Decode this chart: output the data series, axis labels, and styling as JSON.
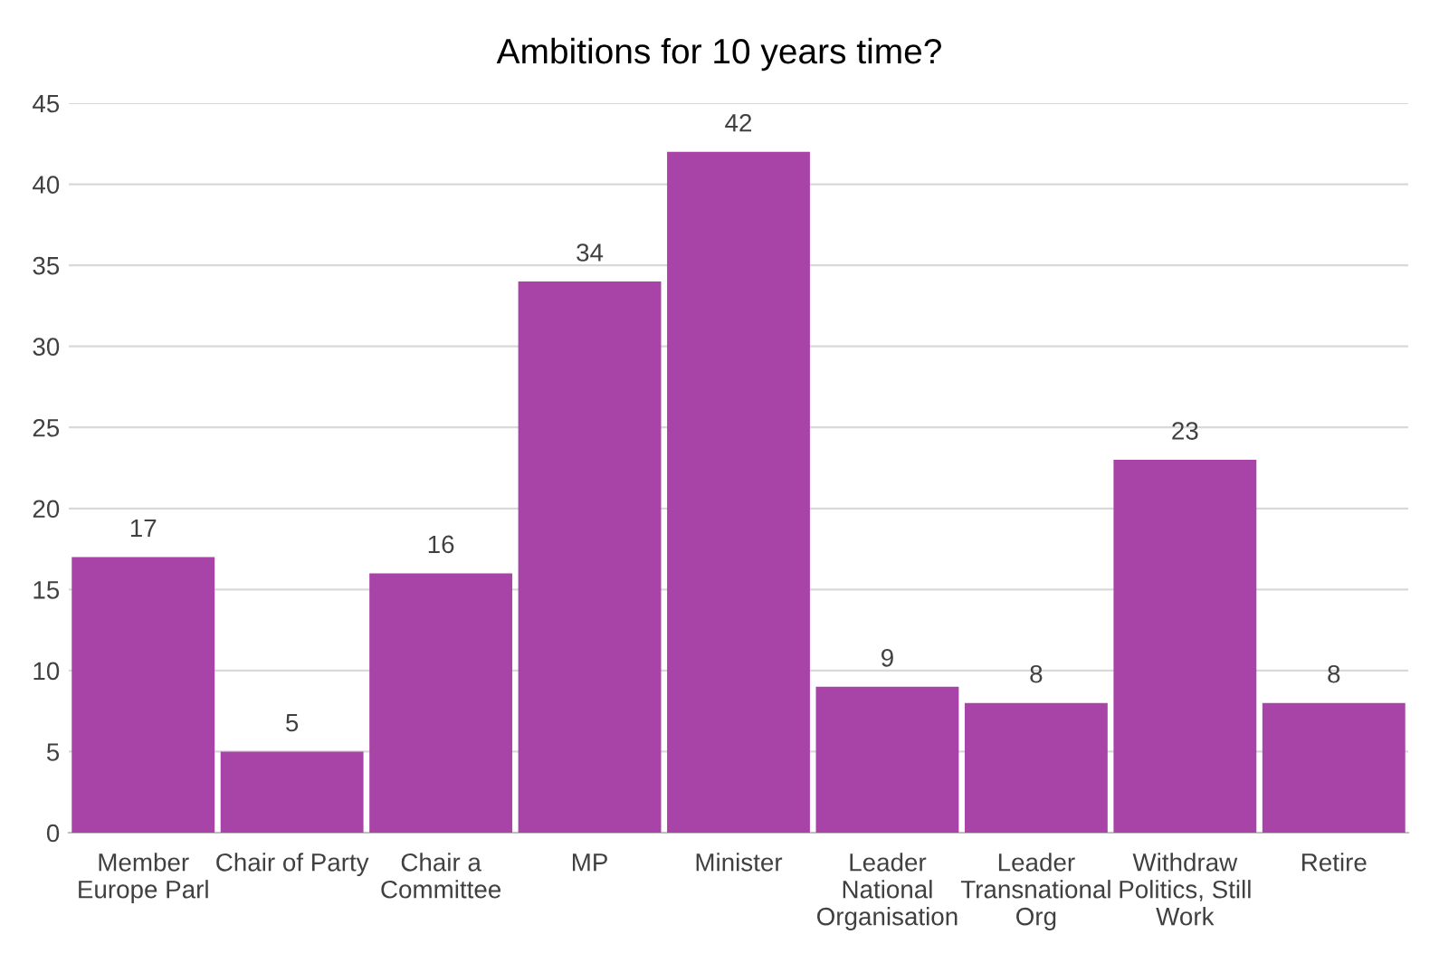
{
  "chart_data": {
    "type": "bar",
    "title": "Ambitions for 10 years time?",
    "categories": [
      "Member\nEurope Parl",
      "Chair of Party",
      "Chair a\nCommittee",
      "MP",
      "Minister",
      "Leader\nNational\nOrganisation",
      "Leader\nTransnational\nOrg",
      "Withdraw\nPolitics, Still\nWork",
      "Retire"
    ],
    "values": [
      17,
      5,
      16,
      34,
      42,
      9,
      8,
      23,
      8
    ],
    "color": "#a843a8",
    "ylim": [
      0,
      45
    ],
    "yticks": [
      0,
      5,
      10,
      15,
      20,
      25,
      30,
      35,
      40,
      45
    ],
    "grid": "y",
    "data_labels": true
  }
}
